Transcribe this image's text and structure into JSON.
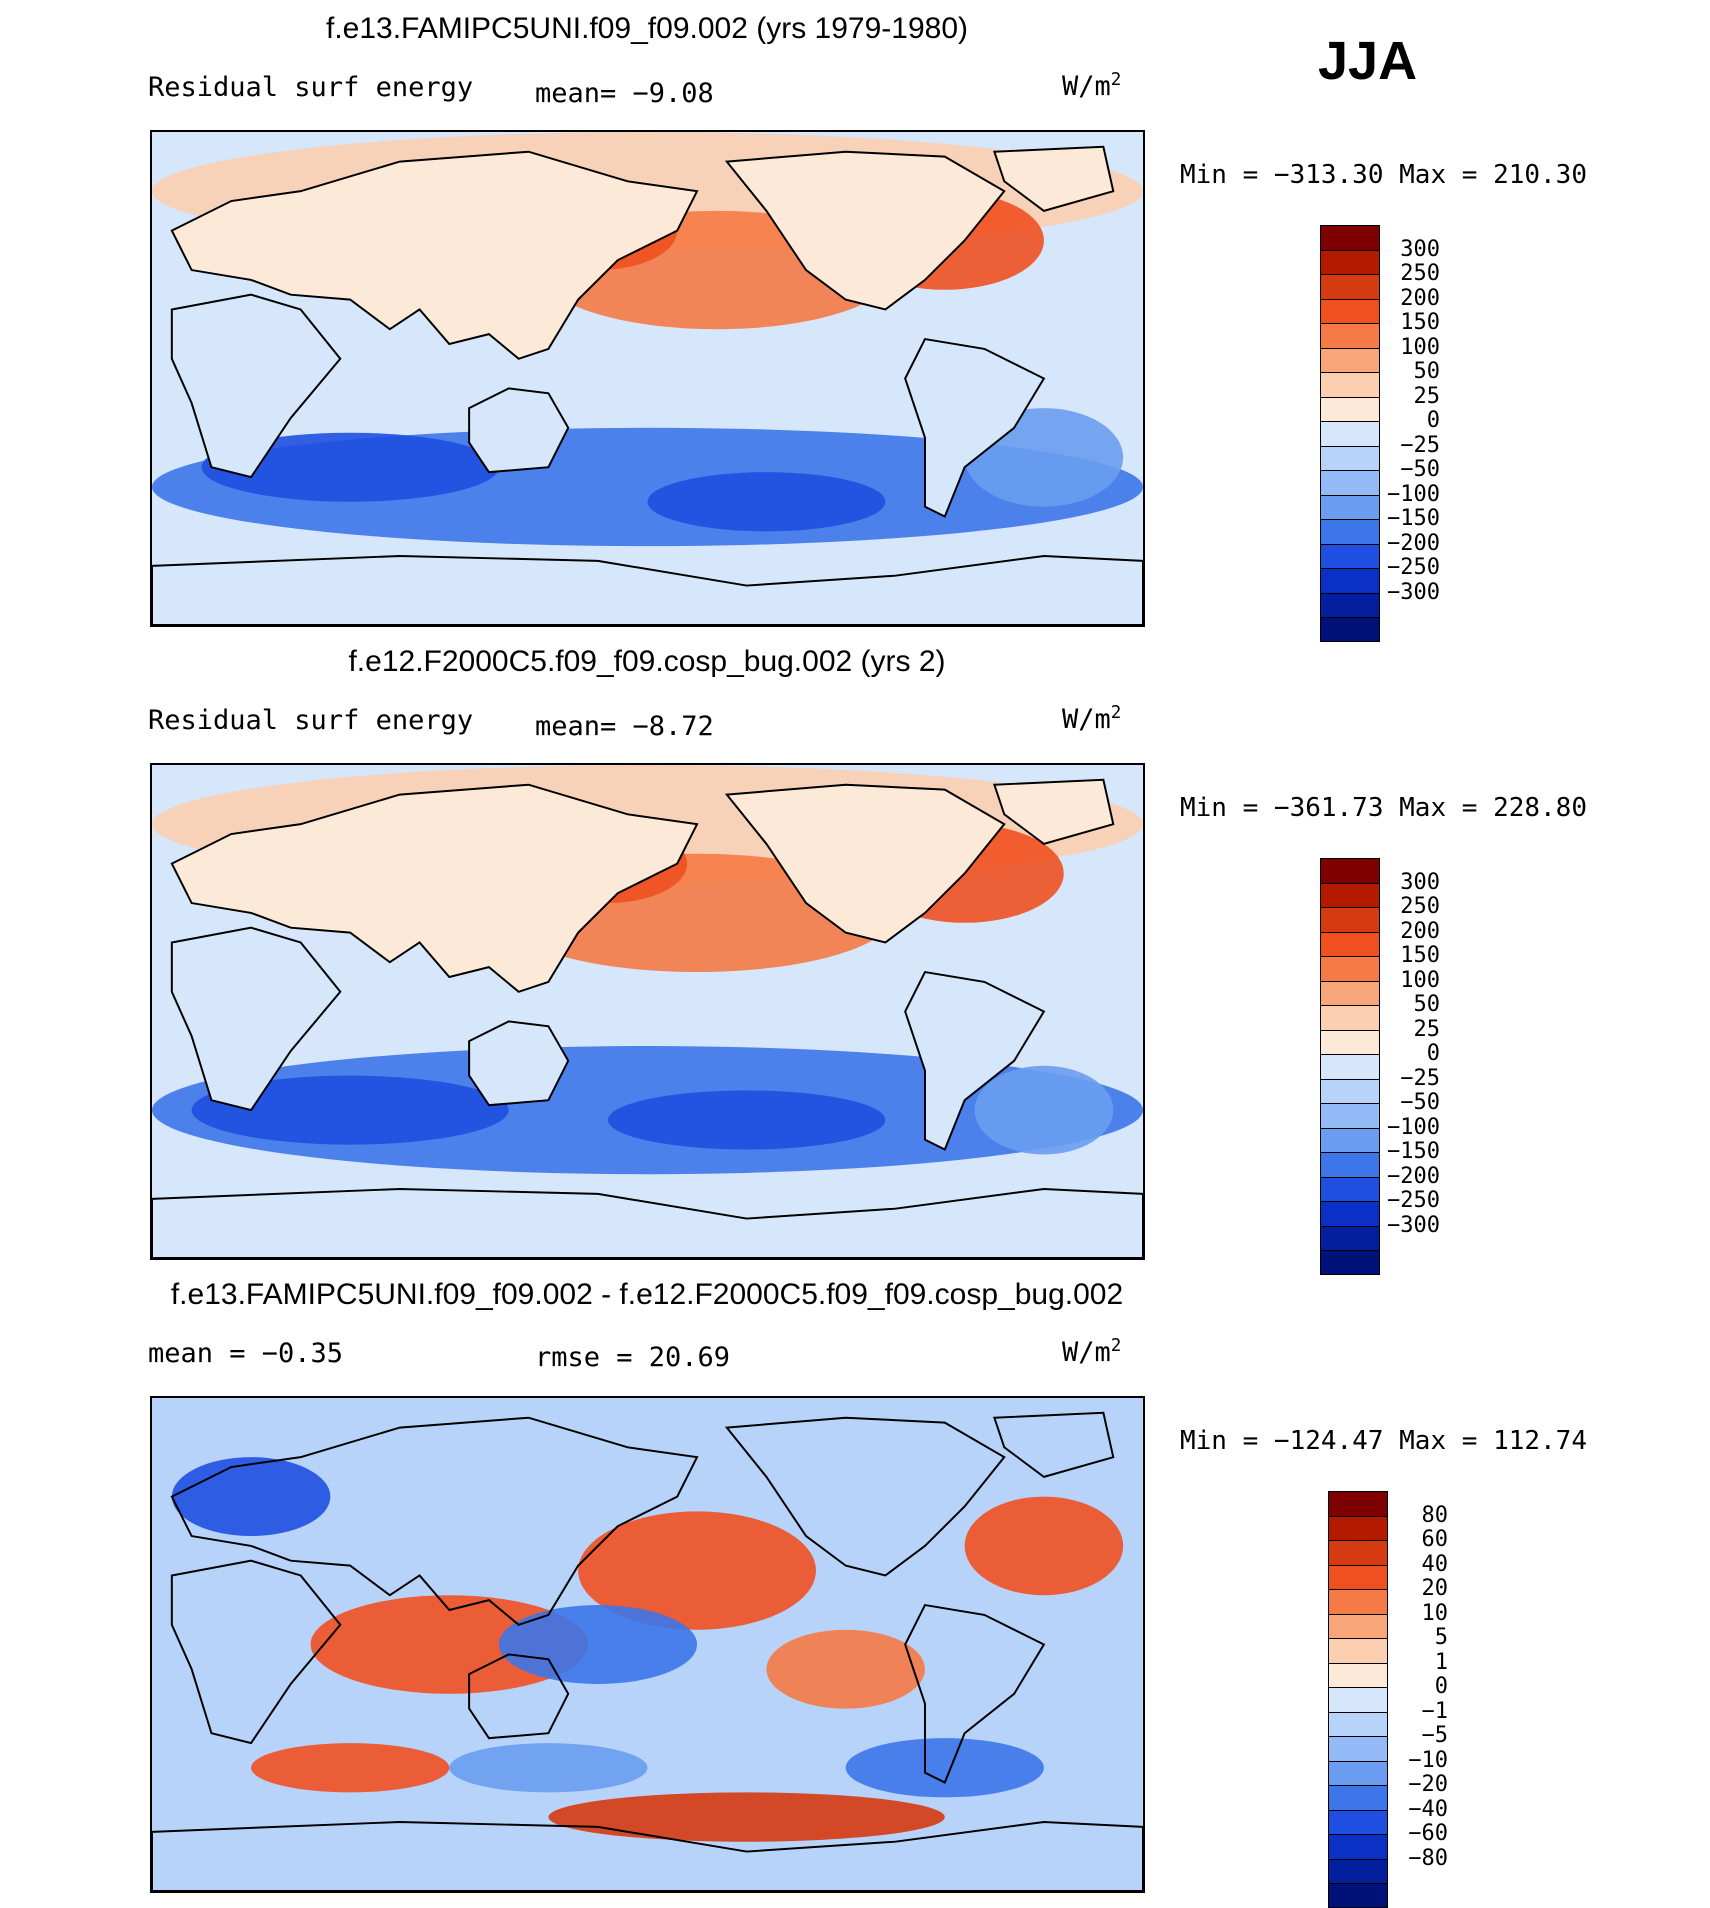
{
  "season": "JJA",
  "panels": [
    {
      "title": "f.e13.FAMIPC5UNI.f09_f09.002 (yrs 1979-1980)",
      "left_label": "Residual surf energy",
      "mean_text": "mean=  −9.08",
      "units_base": "W/m",
      "units_exp": "2",
      "minmax": "Min = −313.30 Max = 210.30",
      "colorbar": {
        "colors": [
          "#7f0000",
          "#b31a00",
          "#d63a10",
          "#f05020",
          "#f57a45",
          "#f8a57a",
          "#fbcfb0",
          "#fde9d8",
          "#d6e6fb",
          "#b8d3fa",
          "#93b9f6",
          "#6a9df0",
          "#3d76e9",
          "#1f4fe0",
          "#0a30c6",
          "#041f9e",
          "#00127a"
        ],
        "ticks": [
          "300",
          "250",
          "200",
          "150",
          "100",
          "50",
          "25",
          "0",
          "−25",
          "−50",
          "−100",
          "−150",
          "−200",
          "−250",
          "−300"
        ]
      }
    },
    {
      "title": "f.e12.F2000C5.f09_f09.cosp_bug.002 (yrs 2)",
      "left_label": "Residual surf energy",
      "mean_text": "mean=  −8.72",
      "units_base": "W/m",
      "units_exp": "2",
      "minmax": "Min = −361.73 Max = 228.80",
      "colorbar": {
        "colors": [
          "#7f0000",
          "#b31a00",
          "#d63a10",
          "#f05020",
          "#f57a45",
          "#f8a57a",
          "#fbcfb0",
          "#fde9d8",
          "#d6e6fb",
          "#b8d3fa",
          "#93b9f6",
          "#6a9df0",
          "#3d76e9",
          "#1f4fe0",
          "#0a30c6",
          "#041f9e",
          "#00127a"
        ],
        "ticks": [
          "300",
          "250",
          "200",
          "150",
          "100",
          "50",
          "25",
          "0",
          "−25",
          "−50",
          "−100",
          "−150",
          "−200",
          "−250",
          "−300"
        ]
      }
    },
    {
      "title": "f.e13.FAMIPC5UNI.f09_f09.002 - f.e12.F2000C5.f09_f09.cosp_bug.002",
      "left_label": "mean =  −0.35",
      "mean_text": "rmse =  20.69",
      "units_base": "W/m",
      "units_exp": "2",
      "minmax": "Min = −124.47 Max = 112.74",
      "colorbar": {
        "colors": [
          "#7f0000",
          "#b31a00",
          "#d63a10",
          "#f05020",
          "#f57a45",
          "#f8a57a",
          "#fbcfb0",
          "#fde9d8",
          "#d6e6fb",
          "#b8d3fa",
          "#93b9f6",
          "#6a9df0",
          "#3d76e9",
          "#1f4fe0",
          "#0a30c6",
          "#041f9e",
          "#00127a"
        ],
        "ticks": [
          "80",
          "60",
          "40",
          "20",
          "10",
          "5",
          "1",
          "0",
          "−1",
          "−5",
          "−10",
          "−20",
          "−40",
          "−60",
          "−80"
        ]
      }
    }
  ],
  "chart_data": [
    {
      "type": "heatmap",
      "title": "f.e13.FAMIPC5UNI.f09_f09.002 (yrs 1979-1980)",
      "variable": "Residual surf energy",
      "units": "W/m2",
      "season": "JJA",
      "mean": -9.08,
      "min": -313.3,
      "max": 210.3,
      "contour_levels": [
        -300,
        -250,
        -200,
        -150,
        -100,
        -50,
        -25,
        0,
        25,
        50,
        100,
        150,
        200,
        250,
        300
      ]
    },
    {
      "type": "heatmap",
      "title": "f.e12.F2000C5.f09_f09.cosp_bug.002 (yrs 2)",
      "variable": "Residual surf energy",
      "units": "W/m2",
      "season": "JJA",
      "mean": -8.72,
      "min": -361.73,
      "max": 228.8,
      "contour_levels": [
        -300,
        -250,
        -200,
        -150,
        -100,
        -50,
        -25,
        0,
        25,
        50,
        100,
        150,
        200,
        250,
        300
      ]
    },
    {
      "type": "heatmap",
      "title": "f.e13.FAMIPC5UNI.f09_f09.002 - f.e12.F2000C5.f09_f09.cosp_bug.002",
      "units": "W/m2",
      "season": "JJA",
      "mean": -0.35,
      "rmse": 20.69,
      "min": -124.47,
      "max": 112.74,
      "contour_levels": [
        -80,
        -60,
        -40,
        -20,
        -10,
        -5,
        -1,
        0,
        1,
        5,
        10,
        20,
        40,
        60,
        80
      ]
    }
  ]
}
